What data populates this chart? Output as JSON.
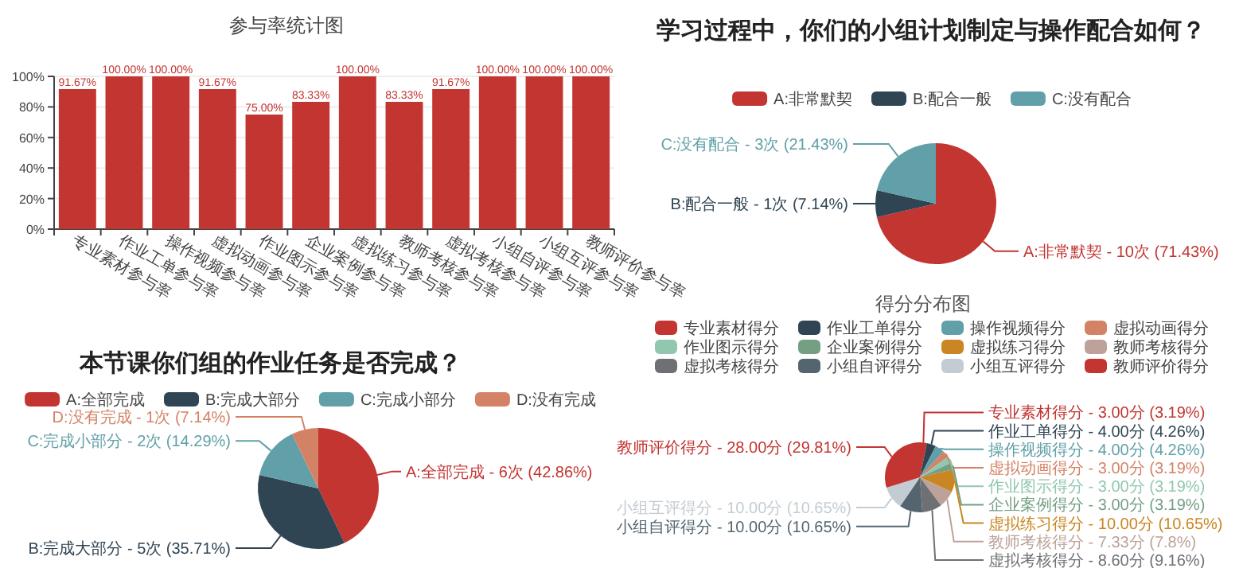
{
  "chart_data": [
    {
      "type": "bar",
      "title": "参与率统计图",
      "categories": [
        "专业素材参与率",
        "作业工单参与率",
        "操作视频参与率",
        "虚拟动画参与率",
        "作业图示参与率",
        "企业案例参与率",
        "虚拟练习参与率",
        "教师考核参与率",
        "虚拟考核参与率",
        "小组自评参与率",
        "小组互评参与率",
        "教师评价参与率"
      ],
      "values": [
        91.67,
        100,
        100,
        91.67,
        75,
        83.33,
        100,
        83.33,
        91.67,
        100,
        100,
        100
      ],
      "value_labels": [
        "91.67%",
        "100.00%",
        "100.00%",
        "91.67%",
        "75.00%",
        "83.33%",
        "100.00%",
        "83.33%",
        "91.67%",
        "100.00%",
        "100.00%",
        "100.00%"
      ],
      "color": "#c23531",
      "ylim": [
        0,
        100
      ],
      "yticks": [
        {
          "value": 0,
          "label": "0%"
        },
        {
          "value": 20,
          "label": "20%"
        },
        {
          "value": 40,
          "label": "40%"
        },
        {
          "value": 60,
          "label": "60%"
        },
        {
          "value": 80,
          "label": "80%"
        },
        {
          "value": 100,
          "label": "100%"
        }
      ],
      "grid": "y"
    },
    {
      "type": "pie",
      "title": "学习过程中，你们的小组计划制定与操作配合如何？",
      "categories": [
        "A:非常默契",
        "B:配合一般",
        "C:没有配合"
      ],
      "values": [
        71.43,
        7.14,
        21.43
      ],
      "value_labels": [
        "A:非常默契 - 10次 (71.43%)",
        "B:配合一般 - 1次 (7.14%)",
        "C:没有配合 - 3次 (21.43%)"
      ],
      "colors": [
        "#c23531",
        "#2f4554",
        "#61a0a8"
      ],
      "legend": "top"
    },
    {
      "type": "pie",
      "title": "本节课你们组的作业任务是否完成？",
      "categories": [
        "A:全部完成",
        "B:完成大部分",
        "C:完成小部分",
        "D:没有完成"
      ],
      "values": [
        42.86,
        35.71,
        14.29,
        7.14
      ],
      "value_labels": [
        "A:全部完成 - 6次 (42.86%)",
        "B:完成大部分 - 5次 (35.71%)",
        "C:完成小部分 - 2次 (14.29%)",
        "D:没有完成 - 1次 (7.14%)"
      ],
      "colors": [
        "#c23531",
        "#2f4554",
        "#61a0a8",
        "#d48265"
      ],
      "legend": "top"
    },
    {
      "type": "pie",
      "title": "得分分布图",
      "categories": [
        "专业素材得分",
        "作业工单得分",
        "操作视频得分",
        "虚拟动画得分",
        "作业图示得分",
        "企业案例得分",
        "虚拟练习得分",
        "教师考核得分",
        "虚拟考核得分",
        "小组自评得分",
        "小组互评得分",
        "教师评价得分"
      ],
      "values": [
        3.19,
        4.26,
        4.26,
        3.19,
        3.19,
        3.19,
        10.65,
        7.8,
        9.16,
        10.65,
        10.65,
        29.81
      ],
      "value_labels": [
        "专业素材得分 - 3.00分 (3.19%)",
        "作业工单得分 - 4.00分 (4.26%)",
        "操作视频得分 - 4.00分 (4.26%)",
        "虚拟动画得分 - 3.00分 (3.19%)",
        "作业图示得分 - 3.00分 (3.19%)",
        "企业案例得分 - 3.00分 (3.19%)",
        "虚拟练习得分 - 10.00分 (10.65%)",
        "教师考核得分 - 7.33分 (7.8%)",
        "虚拟考核得分 - 8.60分 (9.16%)",
        "小组自评得分 - 10.00分 (10.65%)",
        "小组互评得分 - 10.00分 (10.65%)",
        "教师评价得分 - 28.00分 (29.81%)"
      ],
      "colors": [
        "#c23531",
        "#2f4554",
        "#61a0a8",
        "#d48265",
        "#91c7ae",
        "#749f83",
        "#ca8622",
        "#bda29a",
        "#6e7074",
        "#546570",
        "#c4ccd3",
        "#c23531"
      ],
      "legend": "top"
    }
  ]
}
